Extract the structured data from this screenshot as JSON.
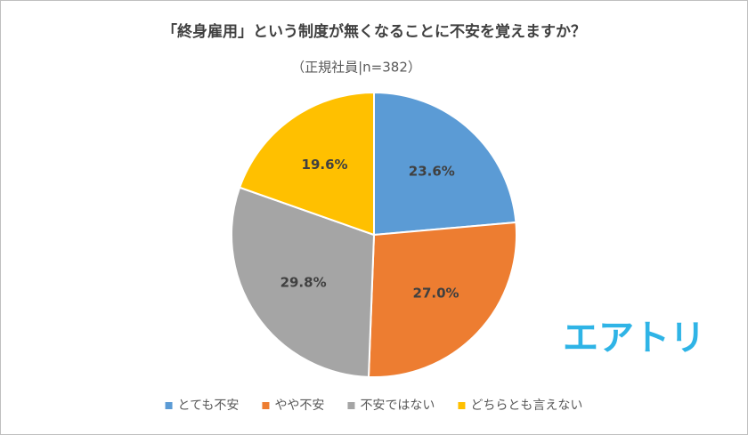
{
  "chart_data": {
    "type": "pie",
    "title": "「終身雇用」という制度が無くなることに不安を覚えますか？",
    "subtitle": "（正規社員|n=382）",
    "categories": [
      "とても不安",
      "やや不安",
      "不安ではない",
      "どちらとも言えない"
    ],
    "values": [
      23.6,
      27.0,
      29.8,
      19.6
    ],
    "value_labels": [
      "23.6%",
      "27.0%",
      "29.8%",
      "19.6%"
    ],
    "colors": [
      "#5b9bd5",
      "#ed7d31",
      "#a5a5a5",
      "#ffc000"
    ],
    "legend": "bottom",
    "annotations": [
      "エアトリ"
    ]
  }
}
